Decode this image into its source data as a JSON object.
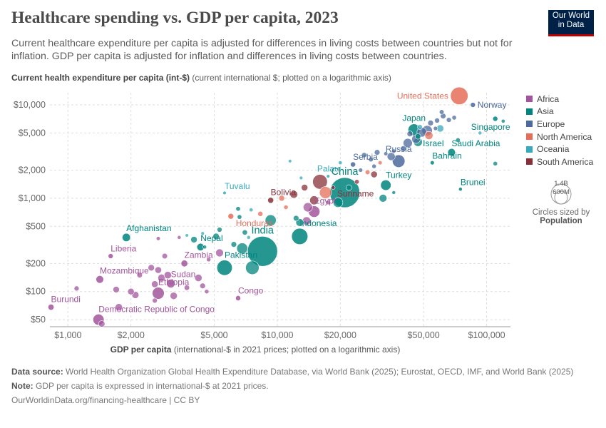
{
  "header": {
    "title": "Healthcare spending vs. GDP per capita, 2023",
    "subtitle": "Current healthcare expenditure per capita is adjusted for differences in living costs between countries but not for inflation. GDP per capita is adjusted for inflation and differences in living costs between countries.",
    "logo_line1": "Our World",
    "logo_line2": "in Data"
  },
  "axes": {
    "y_label_bold": "Current health expenditure per capita (int-$)",
    "y_label_rest": " (current international $; plotted on a logarithmic axis)",
    "x_label_bold": "GDP per capita",
    "x_label_rest": " (international-$ in 2021 prices; plotted on a logarithmic axis)"
  },
  "legend": {
    "items": [
      {
        "label": "Africa",
        "color": "#a2559c"
      },
      {
        "label": "Asia",
        "color": "#00847e"
      },
      {
        "label": "Europe",
        "color": "#4c6a9c"
      },
      {
        "label": "North America",
        "color": "#e56e5a"
      },
      {
        "label": "Oceania",
        "color": "#38aaba"
      },
      {
        "label": "South America",
        "color": "#883039"
      }
    ],
    "size_top": "1.4B",
    "size_bottom": "600M",
    "size_caption": "Circles sized by",
    "size_variable": "Population"
  },
  "footer": {
    "source_label": "Data source:",
    "source_text": " World Health Organization Global Health Expenditure Database, via World Bank (2025); Eurostat, OECD, IMF, and World Bank (2025)",
    "note_label": "Note:",
    "note_text": " GDP per capita is expressed in international-$ at 2021 prices.",
    "url": "OurWorldinData.org/financing-healthcare | CC BY"
  },
  "chart_data": {
    "type": "scatter",
    "x_scale": "log",
    "y_scale": "log",
    "xlim": [
      820,
      130000
    ],
    "ylim": [
      42,
      13500
    ],
    "x_ticks": [
      {
        "value": 1000,
        "label": "$1,000"
      },
      {
        "value": 2000,
        "label": "$2,000"
      },
      {
        "value": 5000,
        "label": "$5,000"
      },
      {
        "value": 10000,
        "label": "$10,000"
      },
      {
        "value": 20000,
        "label": "$20,000"
      },
      {
        "value": 50000,
        "label": "$50,000"
      },
      {
        "value": 100000,
        "label": "$100,000"
      }
    ],
    "y_ticks": [
      {
        "value": 50,
        "label": "$50"
      },
      {
        "value": 100,
        "label": "$100"
      },
      {
        "value": 200,
        "label": "$200"
      },
      {
        "value": 500,
        "label": "$500"
      },
      {
        "value": 1000,
        "label": "$1,000"
      },
      {
        "value": 2000,
        "label": "$2,000"
      },
      {
        "value": 5000,
        "label": "$5,000"
      },
      {
        "value": 10000,
        "label": "$10,000"
      }
    ],
    "grid": true,
    "legend_position": "right",
    "points": [
      {
        "name": "United States",
        "x": 74000,
        "y": 12500,
        "region": "North America",
        "pop": 335,
        "label": true,
        "lx": "left"
      },
      {
        "name": "Norway",
        "x": 86000,
        "y": 10000,
        "region": "Europe",
        "pop": 5.5,
        "label": true,
        "lx": "right"
      },
      {
        "name": "Singapore",
        "x": 110000,
        "y": 7100,
        "region": "Asia",
        "pop": 5.9,
        "label": true,
        "lx": "left",
        "ly": 1
      },
      {
        "name": "Japan",
        "x": 45000,
        "y": 5400,
        "region": "Asia",
        "pop": 124,
        "label": true,
        "lx": "above"
      },
      {
        "name": "Israel",
        "x": 47000,
        "y": 4600,
        "region": "Asia",
        "pop": 9.7,
        "label": true,
        "lx": "right",
        "ly": 1
      },
      {
        "name": "Saudi Arabia",
        "x": 68000,
        "y": 3100,
        "region": "Asia",
        "pop": 33,
        "label": true,
        "lx": "right",
        "ly": -1
      },
      {
        "name": "Russia",
        "x": 38000,
        "y": 2500,
        "region": "Europe",
        "pop": 144,
        "label": true,
        "lx": "above"
      },
      {
        "name": "Bahrain",
        "x": 55000,
        "y": 2400,
        "region": "Asia",
        "pop": 1.5,
        "label": true,
        "lx": "right",
        "ly": -1
      },
      {
        "name": "Serbia",
        "x": 23000,
        "y": 2300,
        "region": "Europe",
        "pop": 6.6,
        "label": true,
        "lx": "right",
        "ly": -1
      },
      {
        "name": "Palau",
        "x": 17500,
        "y": 1720,
        "region": "Oceania",
        "pop": 0.02,
        "label": true,
        "lx": "above"
      },
      {
        "name": "China",
        "x": 21000,
        "y": 1150,
        "region": "Asia",
        "pop": 1410,
        "label": true,
        "lx": "above"
      },
      {
        "name": "Turkey",
        "x": 33000,
        "y": 1380,
        "region": "Asia",
        "pop": 85,
        "label": true,
        "lx": "right",
        "ly": -1
      },
      {
        "name": "Suriname",
        "x": 18500,
        "y": 1300,
        "region": "South America",
        "pop": 0.6,
        "label": true,
        "lx": "right",
        "ly": 1
      },
      {
        "name": "Brunei",
        "x": 75000,
        "y": 1250,
        "region": "Asia",
        "pop": 0.45,
        "label": true,
        "lx": "right",
        "ly": -1
      },
      {
        "name": "Tuvalu",
        "x": 5600,
        "y": 1140,
        "region": "Oceania",
        "pop": 0.011,
        "label": true,
        "lx": "right",
        "ly": -1
      },
      {
        "name": "Bolivia",
        "x": 9300,
        "y": 950,
        "region": "South America",
        "pop": 12.2,
        "label": true,
        "lx": "right",
        "ly": -1
      },
      {
        "name": "Egypt",
        "x": 15000,
        "y": 720,
        "region": "Africa",
        "pop": 112,
        "label": true,
        "lx": "right",
        "ly": -1
      },
      {
        "name": "Honduras",
        "x": 6000,
        "y": 640,
        "region": "North America",
        "pop": 10.6,
        "label": true,
        "lx": "right",
        "ly": 1
      },
      {
        "name": "Afghanistan",
        "x": 1900,
        "y": 380,
        "region": "Asia",
        "pop": 41,
        "label": true,
        "lx": "right",
        "ly": -1
      },
      {
        "name": "Indonesia",
        "x": 12800,
        "y": 390,
        "region": "Asia",
        "pop": 277,
        "label": true,
        "lx": "right",
        "ly": -1
      },
      {
        "name": "India",
        "x": 8500,
        "y": 270,
        "region": "Asia",
        "pop": 1430,
        "label": true,
        "lx": "above"
      },
      {
        "name": "Nepal",
        "x": 4300,
        "y": 300,
        "region": "Asia",
        "pop": 30,
        "label": true,
        "lx": "right",
        "ly": -1
      },
      {
        "name": "Liberia",
        "x": 1600,
        "y": 240,
        "region": "Africa",
        "pop": 5.4,
        "label": true,
        "lx": "right",
        "ly": -1
      },
      {
        "name": "Zambia",
        "x": 3600,
        "y": 200,
        "region": "Africa",
        "pop": 20.6,
        "label": true,
        "lx": "right",
        "ly": -1
      },
      {
        "name": "Pakistan",
        "x": 5600,
        "y": 180,
        "region": "Asia",
        "pop": 240,
        "label": true,
        "lx": "right",
        "ly": -1
      },
      {
        "name": "Mozambique",
        "x": 1420,
        "y": 135,
        "region": "Africa",
        "pop": 33,
        "label": true,
        "lx": "right",
        "ly": -1
      },
      {
        "name": "Sudan",
        "x": 3100,
        "y": 122,
        "region": "Africa",
        "pop": 48,
        "label": true,
        "lx": "right",
        "ly": -1
      },
      {
        "name": "Ethiopia",
        "x": 2700,
        "y": 96,
        "region": "Africa",
        "pop": 126,
        "label": true,
        "lx": "right",
        "ly": -1
      },
      {
        "name": "Congo",
        "x": 6500,
        "y": 85,
        "region": "Africa",
        "pop": 6.1,
        "label": true,
        "lx": "right",
        "ly": -1
      },
      {
        "name": "Burundi",
        "x": 830,
        "y": 68,
        "region": "Africa",
        "pop": 13.2,
        "label": true,
        "lx": "right",
        "ly": -1
      },
      {
        "name": "Democratic Republic of Congo",
        "x": 1400,
        "y": 50,
        "region": "Africa",
        "pop": 102,
        "label": true,
        "lx": "right",
        "ly": -1
      },
      {
        "name": "",
        "x": 62000,
        "y": 7600,
        "region": "Europe",
        "pop": 9
      },
      {
        "name": "",
        "x": 58000,
        "y": 6800,
        "region": "Europe",
        "pop": 6
      },
      {
        "name": "",
        "x": 66000,
        "y": 6900,
        "region": "Europe",
        "pop": 5
      },
      {
        "name": "",
        "x": 70000,
        "y": 7300,
        "region": "Europe",
        "pop": 3
      },
      {
        "name": "",
        "x": 54000,
        "y": 6400,
        "region": "Europe",
        "pop": 10
      },
      {
        "name": "",
        "x": 52000,
        "y": 5300,
        "region": "Europe",
        "pop": 83
      },
      {
        "name": "",
        "x": 57000,
        "y": 5600,
        "region": "Europe",
        "pop": 2
      },
      {
        "name": "",
        "x": 49000,
        "y": 5100,
        "region": "Europe",
        "pop": 68
      },
      {
        "name": "",
        "x": 46000,
        "y": 4300,
        "region": "Europe",
        "pop": 47
      },
      {
        "name": "",
        "x": 43000,
        "y": 4900,
        "region": "Europe",
        "pop": 11
      },
      {
        "name": "",
        "x": 61000,
        "y": 8400,
        "region": "Europe",
        "pop": 4
      },
      {
        "name": "",
        "x": 42000,
        "y": 3900,
        "region": "Europe",
        "pop": 59
      },
      {
        "name": "",
        "x": 40000,
        "y": 3400,
        "region": "Europe",
        "pop": 10
      },
      {
        "name": "",
        "x": 36000,
        "y": 3200,
        "region": "Europe",
        "pop": 2
      },
      {
        "name": "",
        "x": 33000,
        "y": 3000,
        "region": "Europe",
        "pop": 1.3
      },
      {
        "name": "",
        "x": 30000,
        "y": 3100,
        "region": "Europe",
        "pop": 10
      },
      {
        "name": "",
        "x": 28000,
        "y": 2600,
        "region": "Europe",
        "pop": 3.8
      },
      {
        "name": "",
        "x": 26000,
        "y": 2900,
        "region": "Europe",
        "pop": 6.4
      },
      {
        "name": "",
        "x": 35000,
        "y": 2800,
        "region": "Europe",
        "pop": 38
      },
      {
        "name": "",
        "x": 29000,
        "y": 2200,
        "region": "Europe",
        "pop": 2.8
      },
      {
        "name": "",
        "x": 25000,
        "y": 2000,
        "region": "Europe",
        "pop": 1.8
      },
      {
        "name": "",
        "x": 120000,
        "y": 6700,
        "region": "Asia",
        "pop": 0.7
      },
      {
        "name": "",
        "x": 93000,
        "y": 5000,
        "region": "Oceania",
        "pop": 0.5
      },
      {
        "name": "",
        "x": 73000,
        "y": 4200,
        "region": "Asia",
        "pop": 2.7
      },
      {
        "name": "",
        "x": 110000,
        "y": 2350,
        "region": "Asia",
        "pop": 2.7
      },
      {
        "name": "",
        "x": 60000,
        "y": 5600,
        "region": "Oceania",
        "pop": 26
      },
      {
        "name": "",
        "x": 48000,
        "y": 5800,
        "region": "Oceania",
        "pop": 5
      },
      {
        "name": "",
        "x": 53000,
        "y": 4700,
        "region": "North America",
        "pop": 39
      },
      {
        "name": "",
        "x": 47000,
        "y": 4000,
        "region": "Asia",
        "pop": 51
      },
      {
        "name": "",
        "x": 31000,
        "y": 2400,
        "region": "North America",
        "pop": 1.4
      },
      {
        "name": "",
        "x": 29000,
        "y": 1800,
        "region": "South America",
        "pop": 19.6
      },
      {
        "name": "",
        "x": 27000,
        "y": 1900,
        "region": "North America",
        "pop": 4.4
      },
      {
        "name": "",
        "x": 24000,
        "y": 1500,
        "region": "South America",
        "pop": 3.4
      },
      {
        "name": "",
        "x": 32000,
        "y": 1000,
        "region": "Asia",
        "pop": 34
      },
      {
        "name": "",
        "x": 36000,
        "y": 1150,
        "region": "Asia",
        "pop": 0.4
      },
      {
        "name": "",
        "x": 22000,
        "y": 1300,
        "region": "Asia",
        "pop": 10
      },
      {
        "name": "",
        "x": 16000,
        "y": 1500,
        "region": "South America",
        "pop": 216
      },
      {
        "name": "",
        "x": 17000,
        "y": 1150,
        "region": "North America",
        "pop": 128
      },
      {
        "name": "",
        "x": 15000,
        "y": 950,
        "region": "South America",
        "pop": 52
      },
      {
        "name": "",
        "x": 19500,
        "y": 900,
        "region": "Asia",
        "pop": 70
      },
      {
        "name": "",
        "x": 13500,
        "y": 1300,
        "region": "South America",
        "pop": 18
      },
      {
        "name": "",
        "x": 12000,
        "y": 1100,
        "region": "South America",
        "pop": 34
      },
      {
        "name": "",
        "x": 13000,
        "y": 1650,
        "region": "Oceania",
        "pop": 0.2
      },
      {
        "name": "",
        "x": 11500,
        "y": 2500,
        "region": "Oceania",
        "pop": 0.05
      },
      {
        "name": "",
        "x": 20000,
        "y": 2400,
        "region": "Oceania",
        "pop": 0.9
      },
      {
        "name": "",
        "x": 11000,
        "y": 800,
        "region": "North America",
        "pop": 2.8
      },
      {
        "name": "",
        "x": 10500,
        "y": 1000,
        "region": "North America",
        "pop": 11
      },
      {
        "name": "",
        "x": 14000,
        "y": 800,
        "region": "Africa",
        "pop": 60
      },
      {
        "name": "",
        "x": 17500,
        "y": 900,
        "region": "Africa",
        "pop": 2.6
      },
      {
        "name": "",
        "x": 9300,
        "y": 580,
        "region": "Asia",
        "pop": 100
      },
      {
        "name": "",
        "x": 12300,
        "y": 610,
        "region": "Asia",
        "pop": 10
      },
      {
        "name": "",
        "x": 12800,
        "y": 550,
        "region": "Asia",
        "pop": 35
      },
      {
        "name": "",
        "x": 13800,
        "y": 570,
        "region": "Africa",
        "pop": 45
      },
      {
        "name": "",
        "x": 8300,
        "y": 680,
        "region": "North America",
        "pop": 6.3
      },
      {
        "name": "",
        "x": 7500,
        "y": 750,
        "region": "Oceania",
        "pop": 0.9
      },
      {
        "name": "",
        "x": 6500,
        "y": 770,
        "region": "Asia",
        "pop": 3.4
      },
      {
        "name": "",
        "x": 6600,
        "y": 630,
        "region": "Asia",
        "pop": 3.4
      },
      {
        "name": "",
        "x": 7000,
        "y": 430,
        "region": "Asia",
        "pop": 7
      },
      {
        "name": "",
        "x": 7300,
        "y": 380,
        "region": "Oceania",
        "pop": 0.7
      },
      {
        "name": "",
        "x": 6200,
        "y": 320,
        "region": "Asia",
        "pop": 10
      },
      {
        "name": "",
        "x": 6800,
        "y": 290,
        "region": "Asia",
        "pop": 99
      },
      {
        "name": "",
        "x": 5100,
        "y": 390,
        "region": "Asia",
        "pop": 17
      },
      {
        "name": "",
        "x": 5300,
        "y": 460,
        "region": "Asia",
        "pop": 5.7
      },
      {
        "name": "",
        "x": 4400,
        "y": 420,
        "region": "Oceania",
        "pop": 0.2
      },
      {
        "name": "",
        "x": 4000,
        "y": 360,
        "region": "Asia",
        "pop": 18
      },
      {
        "name": "",
        "x": 3700,
        "y": 400,
        "region": "Oceania",
        "pop": 0.1
      },
      {
        "name": "",
        "x": 4500,
        "y": 300,
        "region": "Asia",
        "pop": 0.8
      },
      {
        "name": "",
        "x": 5300,
        "y": 260,
        "region": "Africa",
        "pop": 35
      },
      {
        "name": "",
        "x": 7600,
        "y": 180,
        "region": "Asia",
        "pop": 173
      },
      {
        "name": "",
        "x": 4700,
        "y": 220,
        "region": "Africa",
        "pop": 2.3
      },
      {
        "name": "",
        "x": 2700,
        "y": 370,
        "region": "Africa",
        "pop": 1.3
      },
      {
        "name": "",
        "x": 3400,
        "y": 380,
        "region": "Africa",
        "pop": 0.6
      },
      {
        "name": "",
        "x": 2900,
        "y": 240,
        "region": "Africa",
        "pop": 9
      },
      {
        "name": "",
        "x": 2500,
        "y": 180,
        "region": "Africa",
        "pop": 17
      },
      {
        "name": "",
        "x": 2700,
        "y": 170,
        "region": "Africa",
        "pop": 20
      },
      {
        "name": "",
        "x": 2200,
        "y": 150,
        "region": "Africa",
        "pop": 8.8
      },
      {
        "name": "",
        "x": 2800,
        "y": 140,
        "region": "Africa",
        "pop": 30
      },
      {
        "name": "",
        "x": 3000,
        "y": 150,
        "region": "Africa",
        "pop": 28
      },
      {
        "name": "",
        "x": 2600,
        "y": 120,
        "region": "Africa",
        "pop": 21
      },
      {
        "name": "",
        "x": 4200,
        "y": 140,
        "region": "Africa",
        "pop": 28
      },
      {
        "name": "",
        "x": 4400,
        "y": 115,
        "region": "Africa",
        "pop": 10
      },
      {
        "name": "",
        "x": 3700,
        "y": 110,
        "region": "Africa",
        "pop": 8.2
      },
      {
        "name": "",
        "x": 4600,
        "y": 100,
        "region": "Africa",
        "pop": 2.4
      },
      {
        "name": "",
        "x": 1700,
        "y": 105,
        "region": "Africa",
        "pop": 17
      },
      {
        "name": "",
        "x": 2000,
        "y": 100,
        "region": "Africa",
        "pop": 18
      },
      {
        "name": "",
        "x": 1100,
        "y": 108,
        "region": "Africa",
        "pop": 5.5
      },
      {
        "name": "",
        "x": 2100,
        "y": 92,
        "region": "Africa",
        "pop": 24
      },
      {
        "name": "",
        "x": 1750,
        "y": 68,
        "region": "Africa",
        "pop": 26
      },
      {
        "name": "",
        "x": 3200,
        "y": 90,
        "region": "Africa",
        "pop": 27
      },
      {
        "name": "",
        "x": 1450,
        "y": 45,
        "region": "Africa",
        "pop": 17
      },
      {
        "name": "",
        "x": 2600,
        "y": 80,
        "region": "Africa",
        "pop": 5.4
      }
    ]
  }
}
